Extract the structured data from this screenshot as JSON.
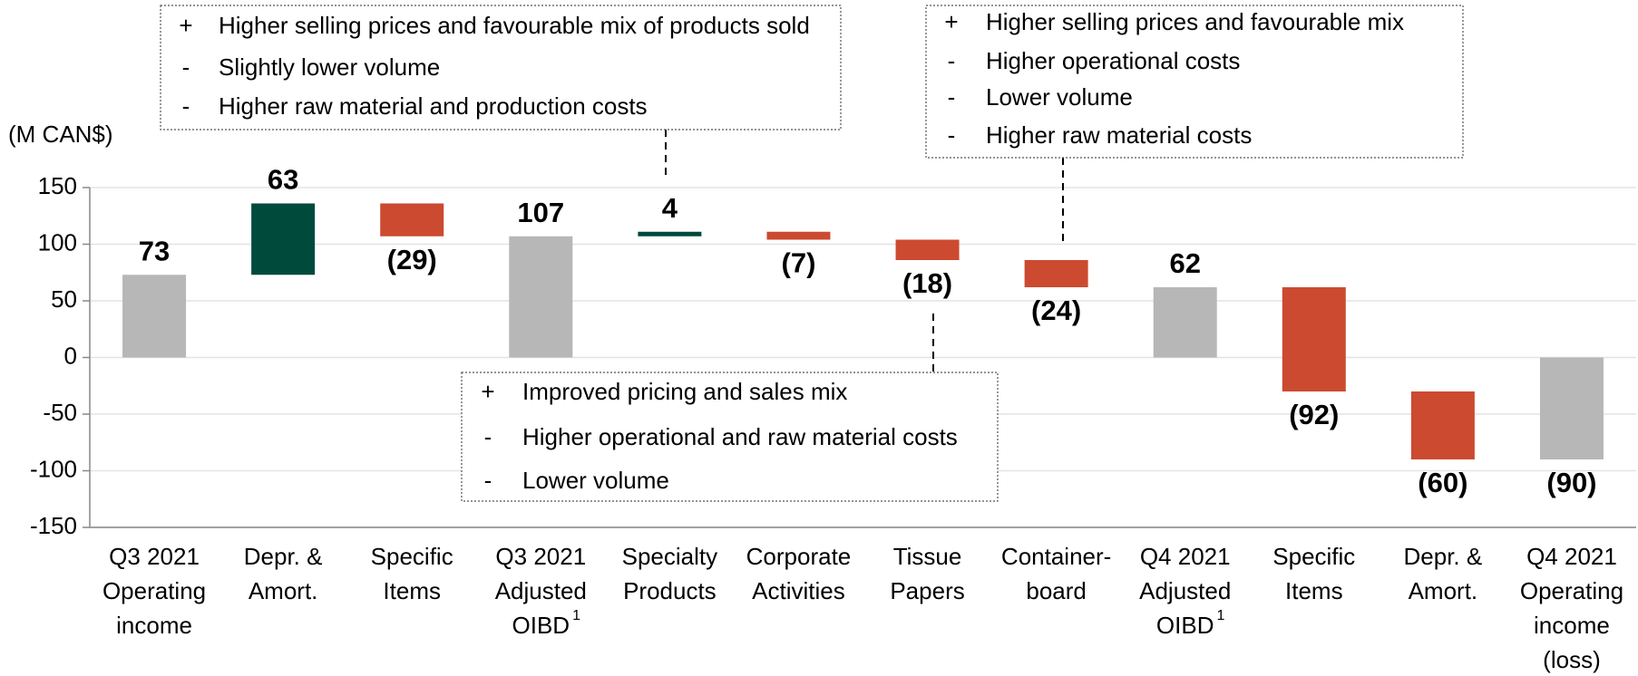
{
  "chart_data": {
    "type": "waterfall",
    "axis_label": "(M CAN$)",
    "categories": [
      {
        "lines": [
          "Q3 2021",
          "Operating",
          "income"
        ]
      },
      {
        "lines": [
          "Depr. &",
          "Amort."
        ]
      },
      {
        "lines": [
          "Specific",
          "Items"
        ]
      },
      {
        "lines": [
          "Q3 2021",
          "Adjusted",
          "OIBD"
        ],
        "superscript": "1"
      },
      {
        "lines": [
          "Specialty",
          "Products"
        ]
      },
      {
        "lines": [
          "Corporate",
          "Activities"
        ]
      },
      {
        "lines": [
          "Tissue",
          "Papers"
        ]
      },
      {
        "lines": [
          "Container-",
          "board"
        ]
      },
      {
        "lines": [
          "Q4 2021",
          "Adjusted",
          "OIBD"
        ],
        "superscript": "1"
      },
      {
        "lines": [
          "Specific",
          "Items"
        ]
      },
      {
        "lines": [
          "Depr. &",
          "Amort."
        ]
      },
      {
        "lines": [
          "Q4 2021",
          "Operating",
          "income",
          "(loss)"
        ]
      }
    ],
    "values": [
      73,
      63,
      -29,
      107,
      4,
      -7,
      -18,
      -24,
      62,
      -92,
      -60,
      -90
    ],
    "value_labels": [
      "73",
      "63",
      "(29)",
      "107",
      "4",
      "(7)",
      "(18)",
      "(24)",
      "62",
      "(92)",
      "(60)",
      "(90)"
    ],
    "measure": [
      "absolute",
      "relative",
      "relative",
      "absolute",
      "relative",
      "relative",
      "relative",
      "relative",
      "absolute",
      "relative",
      "relative",
      "absolute"
    ],
    "colors": {
      "total": "#b7b7b7",
      "increase": "#004a3b",
      "decrease": "#cc4a30"
    },
    "ylim": [
      -150,
      150
    ],
    "yticks": [
      -150,
      -100,
      -50,
      0,
      50,
      100,
      150
    ],
    "grid": true,
    "annotations": [
      {
        "items": [
          {
            "sign": "+",
            "text": "Higher selling prices and favourable mix of products sold"
          },
          {
            "sign": "-",
            "text": "Slightly lower volume"
          },
          {
            "sign": "-",
            "text": "Higher raw material and production costs"
          }
        ]
      },
      {
        "items": [
          {
            "sign": "+",
            "text": "Higher selling prices and favourable mix"
          },
          {
            "sign": "-",
            "text": "Higher operational costs"
          },
          {
            "sign": "-",
            "text": "Lower volume"
          },
          {
            "sign": "-",
            "text": "Higher raw material costs"
          }
        ]
      },
      {
        "items": [
          {
            "sign": "+",
            "text": "Improved pricing and sales mix"
          },
          {
            "sign": "-",
            "text": "Higher operational and raw material costs"
          },
          {
            "sign": "-",
            "text": "Lower volume"
          }
        ]
      }
    ]
  }
}
